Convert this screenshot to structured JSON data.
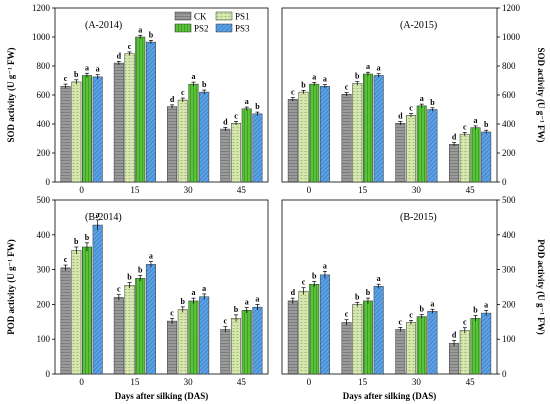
{
  "colors": {
    "CK": "#9a9a9a",
    "PS1": "#d6e8b0",
    "PS2": "#5ac23a",
    "PS3": "#5ea3e6"
  },
  "chart_data": [
    {
      "type": "bar",
      "title": "(A-2014)",
      "categories": [
        "0",
        "15",
        "30",
        "45"
      ],
      "ylim": [
        0,
        1200
      ],
      "yticks": [
        "0",
        "200",
        "400",
        "600",
        "800",
        "1000",
        "1200"
      ],
      "ylabel": "SOD activity (U g⁻¹ FW)",
      "ylabel_side": "left",
      "xlabel": "",
      "legend": {
        "entries": [
          "CK",
          "PS1",
          "PS2",
          "PS3"
        ],
        "placement": "top-right"
      },
      "series": [
        {
          "name": "CK",
          "values": [
            660,
            820,
            520,
            365
          ],
          "errors": [
            15,
            12,
            12,
            12
          ],
          "letters": [
            "c",
            "d",
            "d",
            "d"
          ]
        },
        {
          "name": "PS1",
          "values": [
            690,
            885,
            565,
            405
          ],
          "errors": [
            15,
            12,
            14,
            12
          ],
          "letters": [
            "b",
            "c",
            "c",
            "c"
          ]
        },
        {
          "name": "PS2",
          "values": [
            735,
            1000,
            675,
            505
          ],
          "errors": [
            15,
            12,
            14,
            12
          ],
          "letters": [
            "a",
            "a",
            "a",
            "a"
          ]
        },
        {
          "name": "PS3",
          "values": [
            725,
            965,
            620,
            470
          ],
          "errors": [
            15,
            12,
            14,
            12
          ],
          "letters": [
            "a",
            "b",
            "b",
            "b"
          ]
        }
      ]
    },
    {
      "type": "bar",
      "title": "(A-2015)",
      "categories": [
        "0",
        "15",
        "30",
        "45"
      ],
      "ylim": [
        0,
        1200
      ],
      "yticks": [
        "0",
        "200",
        "400",
        "600",
        "800",
        "1000",
        "1200"
      ],
      "ylabel": "SOD activity (U g⁻¹ FW)",
      "ylabel_side": "right",
      "xlabel": "",
      "series": [
        {
          "name": "CK",
          "values": [
            570,
            605,
            405,
            260
          ],
          "errors": [
            12,
            12,
            12,
            12
          ],
          "letters": [
            "c",
            "c",
            "d",
            "d"
          ]
        },
        {
          "name": "PS1",
          "values": [
            620,
            680,
            460,
            330
          ],
          "errors": [
            12,
            12,
            12,
            12
          ],
          "letters": [
            "b",
            "b",
            "c",
            "c"
          ]
        },
        {
          "name": "PS2",
          "values": [
            675,
            745,
            525,
            375
          ],
          "errors": [
            12,
            12,
            12,
            12
          ],
          "letters": [
            "a",
            "a",
            "a",
            "a"
          ]
        },
        {
          "name": "PS3",
          "values": [
            660,
            735,
            500,
            345
          ],
          "errors": [
            12,
            12,
            12,
            12
          ],
          "letters": [
            "a",
            "a",
            "b",
            "b"
          ]
        }
      ]
    },
    {
      "type": "bar",
      "title": "(B-2014)",
      "categories": [
        "0",
        "15",
        "30",
        "45"
      ],
      "ylim": [
        0,
        500
      ],
      "yticks": [
        "0",
        "100",
        "200",
        "300",
        "400",
        "500"
      ],
      "ylabel": "POD activity (U g⁻¹ FW)",
      "ylabel_side": "left",
      "xlabel": "Days after silking (DAS)",
      "series": [
        {
          "name": "CK",
          "values": [
            305,
            220,
            152,
            128
          ],
          "errors": [
            8,
            8,
            8,
            8
          ],
          "letters": [
            "c",
            "c",
            "c",
            "c"
          ]
        },
        {
          "name": "PS1",
          "values": [
            355,
            255,
            185,
            160
          ],
          "errors": [
            10,
            8,
            8,
            10
          ],
          "letters": [
            "b",
            "b",
            "b",
            "b"
          ]
        },
        {
          "name": "PS2",
          "values": [
            365,
            275,
            210,
            183
          ],
          "errors": [
            12,
            8,
            8,
            8
          ],
          "letters": [
            "b",
            "b",
            "a",
            "a"
          ]
        },
        {
          "name": "PS3",
          "values": [
            428,
            315,
            222,
            192
          ],
          "errors": [
            15,
            8,
            8,
            8
          ],
          "letters": [
            "a",
            "a",
            "a",
            "a"
          ]
        }
      ]
    },
    {
      "type": "bar",
      "title": "(B-2015)",
      "categories": [
        "0",
        "15",
        "30",
        "45"
      ],
      "ylim": [
        0,
        500
      ],
      "yticks": [
        "0",
        "100",
        "200",
        "300",
        "400",
        "500"
      ],
      "ylabel": "POD activity (U g⁻¹ FW)",
      "ylabel_side": "right",
      "xlabel": "Days after silking (DAS)",
      "series": [
        {
          "name": "CK",
          "values": [
            210,
            148,
            128,
            88
          ],
          "errors": [
            8,
            8,
            6,
            8
          ],
          "letters": [
            "d",
            "c",
            "c",
            "d"
          ]
        },
        {
          "name": "PS1",
          "values": [
            238,
            200,
            148,
            125
          ],
          "errors": [
            10,
            6,
            6,
            8
          ],
          "letters": [
            "c",
            "b",
            "c",
            "c"
          ]
        },
        {
          "name": "PS2",
          "values": [
            258,
            210,
            165,
            160
          ],
          "errors": [
            8,
            8,
            6,
            8
          ],
          "letters": [
            "b",
            "b",
            "b",
            "b"
          ]
        },
        {
          "name": "PS3",
          "values": [
            285,
            252,
            180,
            175
          ],
          "errors": [
            10,
            6,
            6,
            8
          ],
          "letters": [
            "a",
            "a",
            "a",
            "a"
          ]
        }
      ]
    }
  ]
}
